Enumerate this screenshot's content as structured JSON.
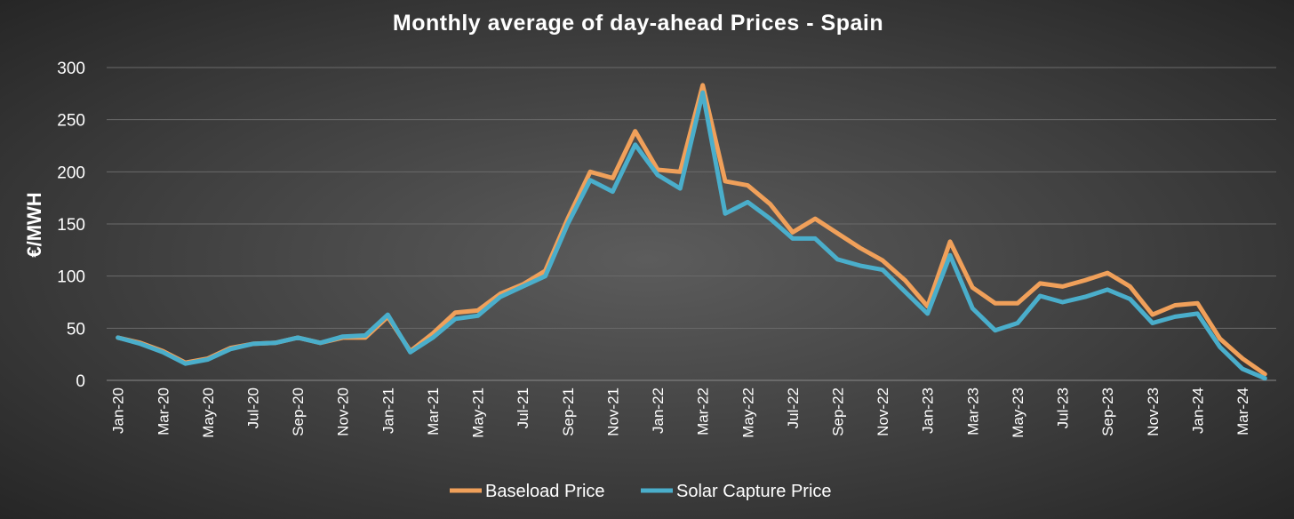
{
  "chart_data": {
    "type": "line",
    "title": "Monthly average of day-ahead Prices - Spain",
    "xlabel": "",
    "ylabel": "€/MWH",
    "ylim": [
      0,
      300
    ],
    "yticks": [
      0,
      50,
      100,
      150,
      200,
      250,
      300
    ],
    "grid": true,
    "legend_position": "bottom",
    "x": [
      "Jan-20",
      "Feb-20",
      "Mar-20",
      "Apr-20",
      "May-20",
      "Jun-20",
      "Jul-20",
      "Aug-20",
      "Sep-20",
      "Oct-20",
      "Nov-20",
      "Dec-20",
      "Jan-21",
      "Feb-21",
      "Mar-21",
      "Apr-21",
      "May-21",
      "Jun-21",
      "Jul-21",
      "Aug-21",
      "Sep-21",
      "Oct-21",
      "Nov-21",
      "Dec-21",
      "Jan-22",
      "Feb-22",
      "Mar-22",
      "Apr-22",
      "May-22",
      "Jun-22",
      "Jul-22",
      "Aug-22",
      "Sep-22",
      "Oct-22",
      "Nov-22",
      "Dec-22",
      "Jan-23",
      "Feb-23",
      "Mar-23",
      "Apr-23",
      "May-23",
      "Jun-23",
      "Jul-23",
      "Aug-23",
      "Sep-23",
      "Oct-23",
      "Nov-23",
      "Dec-23",
      "Jan-24",
      "Feb-24",
      "Mar-24",
      "Apr-24"
    ],
    "xtick_labels": [
      "Jan-20",
      "Mar-20",
      "May-20",
      "Jul-20",
      "Sep-20",
      "Nov-20",
      "Jan-21",
      "Mar-21",
      "May-21",
      "Jul-21",
      "Sep-21",
      "Nov-21",
      "Jan-22",
      "Mar-22",
      "May-22",
      "Jul-22",
      "Sep-22",
      "Nov-22",
      "Jan-23",
      "Mar-23",
      "May-23",
      "Jul-23",
      "Sep-23",
      "Nov-23",
      "Jan-24",
      "Mar-24"
    ],
    "series": [
      {
        "name": "Baseload Price",
        "color": "#f0a05a",
        "values": [
          41,
          36,
          28,
          17,
          21,
          31,
          35,
          36,
          41,
          36,
          41,
          41,
          61,
          28,
          45,
          65,
          67,
          83,
          92,
          105,
          155,
          200,
          194,
          239,
          202,
          200,
          283,
          191,
          187,
          169,
          142,
          155,
          141,
          127,
          115,
          96,
          71,
          133,
          89,
          74,
          74,
          93,
          90,
          96,
          103,
          90,
          63,
          72,
          74,
          40,
          21,
          6
        ]
      },
      {
        "name": "Solar Capture Price",
        "color": "#4aaecb",
        "values": [
          41,
          35,
          27,
          16,
          20,
          30,
          35,
          36,
          41,
          36,
          42,
          43,
          63,
          27,
          41,
          59,
          62,
          80,
          90,
          100,
          150,
          192,
          181,
          226,
          197,
          184,
          276,
          160,
          171,
          155,
          136,
          136,
          116,
          110,
          106,
          85,
          64,
          120,
          69,
          48,
          55,
          81,
          75,
          80,
          87,
          78,
          55,
          61,
          64,
          32,
          11,
          2
        ]
      }
    ]
  }
}
